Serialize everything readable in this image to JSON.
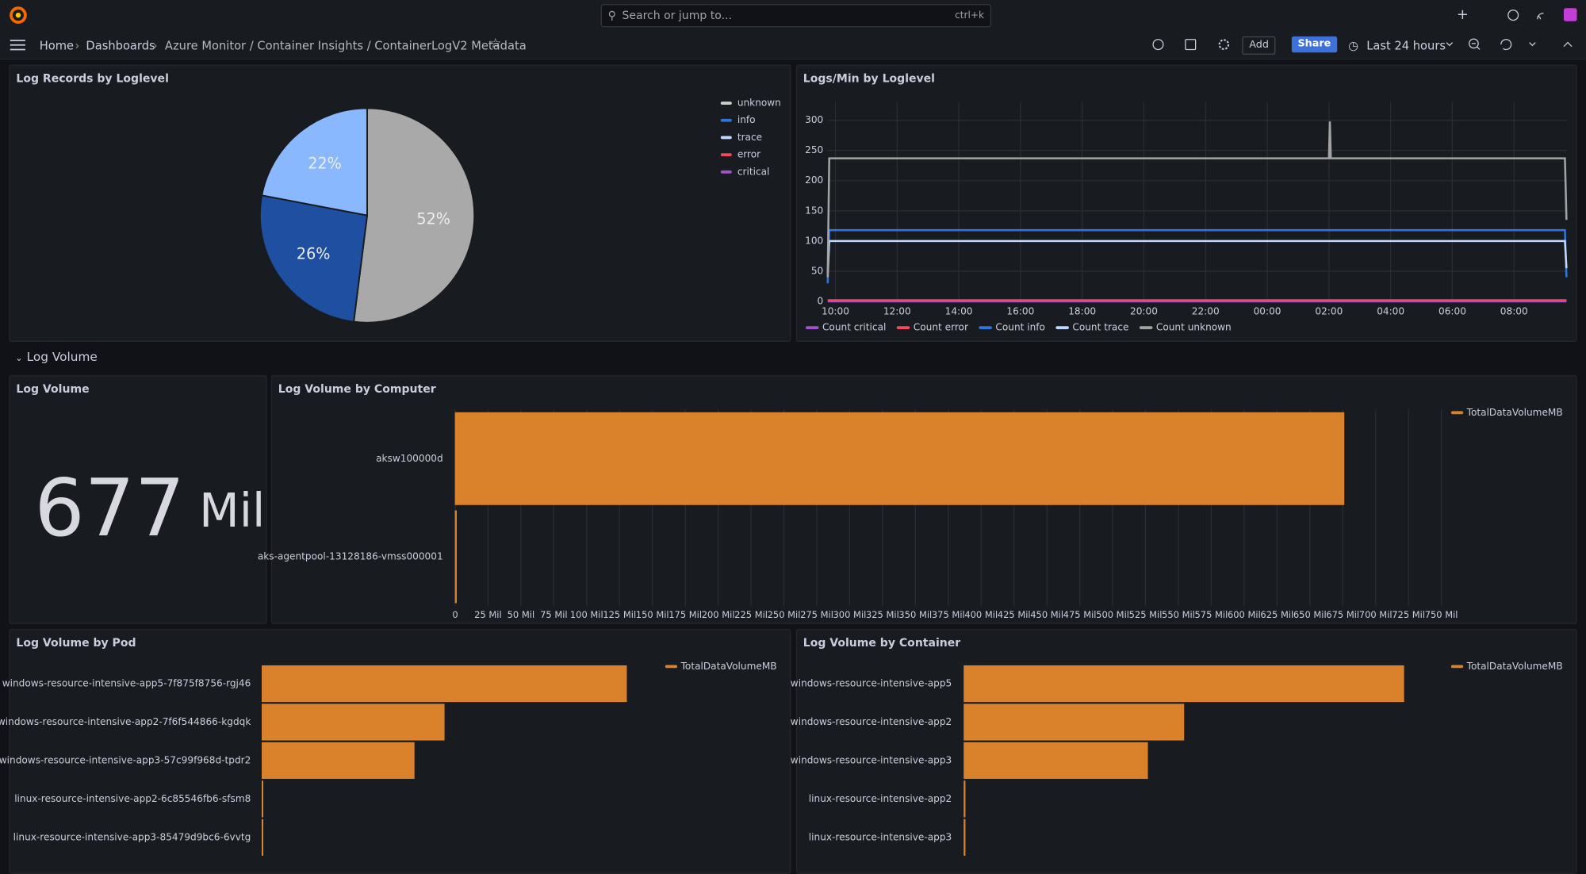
{
  "topbar": {
    "search": "Search or jump to...",
    "shortcut": "ctrl+k"
  },
  "breadcrumbs": [
    "Home",
    "Dashboards",
    "Azure Monitor / Container Insights / ContainerLogV2 Metadata"
  ],
  "toolbar": {
    "add": "Add",
    "share": "Share",
    "time_range": "Last 24 hours"
  },
  "row_title": "Log Volume",
  "stat": {
    "title": "Log Volume",
    "value": 677,
    "unit": "Mil"
  },
  "chart_data": [
    {
      "type": "pie",
      "title": "Log Records by Loglevel",
      "categories": [
        "unknown",
        "info",
        "trace",
        "error",
        "critical"
      ],
      "values": [
        52,
        26,
        22,
        0,
        0
      ],
      "value_labels": [
        "52%",
        "26%",
        "22%",
        null,
        null
      ],
      "colors": [
        "#a9a9a9",
        "#1f4fa0",
        "#8ab8ff",
        "#f2495c",
        "#a352cc"
      ],
      "legend_colors": [
        "#cccccc",
        "#3274d9",
        "#c0d8ff",
        "#f2495c",
        "#a352cc"
      ],
      "legend": "right"
    },
    {
      "type": "line",
      "title": "Logs/Min by Loglevel",
      "x": [
        9.75,
        9.8,
        26,
        26.03,
        26.06,
        33.65,
        33.7
      ],
      "xlim": [
        9.74,
        33.71
      ],
      "xticks": [
        {
          "value": 10,
          "label": "10:00"
        },
        {
          "value": 12,
          "label": "12:00"
        },
        {
          "value": 14,
          "label": "14:00"
        },
        {
          "value": 16,
          "label": "16:00"
        },
        {
          "value": 18,
          "label": "18:00"
        },
        {
          "value": 20,
          "label": "20:00"
        },
        {
          "value": 22,
          "label": "22:00"
        },
        {
          "value": 24,
          "label": "00:00"
        },
        {
          "value": 26,
          "label": "02:00"
        },
        {
          "value": 28,
          "label": "04:00"
        },
        {
          "value": 30,
          "label": "06:00"
        },
        {
          "value": 32,
          "label": "08:00"
        }
      ],
      "ylim": [
        0,
        330
      ],
      "yticks": [
        0,
        50,
        100,
        150,
        200,
        250,
        300
      ],
      "grid": true,
      "legend": "bottom",
      "series": [
        {
          "name": "Count critical",
          "color": "#a352cc",
          "values": [
            0,
            0,
            0,
            0,
            0,
            0,
            0
          ]
        },
        {
          "name": "Count error",
          "color": "#f2495c",
          "values": [
            2,
            2,
            2,
            2,
            2,
            2,
            2
          ]
        },
        {
          "name": "Count info",
          "color": "#3274d9",
          "values": [
            30,
            118,
            118,
            118,
            118,
            118,
            40
          ]
        },
        {
          "name": "Count trace",
          "color": "#c0d8ff",
          "values": [
            45,
            100,
            100,
            100,
            100,
            100,
            55
          ]
        },
        {
          "name": "Count unknown",
          "color": "#a3a3a3",
          "values": [
            40,
            237,
            237,
            298,
            237,
            237,
            135
          ]
        }
      ]
    },
    {
      "type": "hbar",
      "title": "Log Volume by Computer",
      "categories": [
        "aksw100000d",
        "aks-agentpool-13128186-vmss000001"
      ],
      "series": [
        {
          "name": "TotalDataVolumeMB",
          "color": "#d9822b",
          "values": [
            676000000,
            1000000
          ]
        }
      ],
      "xlim": [
        0,
        760000000
      ],
      "xticks": [
        0,
        {
          "value": 25000000,
          "label": "25 Mil"
        },
        {
          "value": 50000000,
          "label": "50 Mil"
        },
        {
          "value": 75000000,
          "label": "75 Mil"
        },
        {
          "value": 100000000,
          "label": "100 Mil"
        },
        {
          "value": 125000000,
          "label": "125 Mil"
        },
        {
          "value": 150000000,
          "label": "150 Mil"
        },
        {
          "value": 175000000,
          "label": "175 Mil"
        },
        {
          "value": 200000000,
          "label": "200 Mil"
        },
        {
          "value": 225000000,
          "label": "225 Mil"
        },
        {
          "value": 250000000,
          "label": "250 Mil"
        },
        {
          "value": 275000000,
          "label": "275 Mil"
        },
        {
          "value": 300000000,
          "label": "300 Mil"
        },
        {
          "value": 325000000,
          "label": "325 Mil"
        },
        {
          "value": 350000000,
          "label": "350 Mil"
        },
        {
          "value": 375000000,
          "label": "375 Mil"
        },
        {
          "value": 400000000,
          "label": "400 Mil"
        },
        {
          "value": 425000000,
          "label": "425 Mil"
        },
        {
          "value": 450000000,
          "label": "450 Mil"
        },
        {
          "value": 475000000,
          "label": "475 Mil"
        },
        {
          "value": 500000000,
          "label": "500 Mil"
        },
        {
          "value": 525000000,
          "label": "525 Mil"
        },
        {
          "value": 550000000,
          "label": "550 Mil"
        },
        {
          "value": 575000000,
          "label": "575 Mil"
        },
        {
          "value": 600000000,
          "label": "600 Mil"
        },
        {
          "value": 625000000,
          "label": "625 Mil"
        },
        {
          "value": 650000000,
          "label": "650 Mil"
        },
        {
          "value": 675000000,
          "label": "675 Mil"
        },
        {
          "value": 700000000,
          "label": "700 Mil"
        },
        {
          "value": 725000000,
          "label": "725 Mil"
        },
        {
          "value": 750000000,
          "label": "750 Mil"
        }
      ],
      "grid": true,
      "legend": "top-right"
    },
    {
      "type": "hbar",
      "title": "Log Volume by Pod",
      "categories": [
        "windows-resource-intensive-app5-7f875f8756-rgj46",
        "windows-resource-intensive-app2-7f6f544866-kgdqk",
        "windows-resource-intensive-app3-57c99f968d-tpdr2",
        "linux-resource-intensive-app2-6c85546fb6-sfsm8",
        "linux-resource-intensive-app3-85479d9bc6-6vvtg"
      ],
      "series": [
        {
          "name": "TotalDataVolumeMB",
          "color": "#d9822b",
          "values": [
            352000000,
            176000000,
            147000000,
            1000000,
            1000000
          ]
        }
      ],
      "xlim": [
        0,
        500000000
      ],
      "legend": "top-right"
    },
    {
      "type": "hbar",
      "title": "Log Volume by Container",
      "categories": [
        "windows-resource-intensive-app5",
        "windows-resource-intensive-app2",
        "windows-resource-intensive-app3",
        "linux-resource-intensive-app2",
        "linux-resource-intensive-app3"
      ],
      "series": [
        {
          "name": "TotalDataVolumeMB",
          "color": "#d9822b",
          "values": [
            352000000,
            176000000,
            147000000,
            1000000,
            1000000
          ]
        }
      ],
      "xlim": [
        0,
        480000000
      ],
      "legend": "top-right"
    }
  ]
}
